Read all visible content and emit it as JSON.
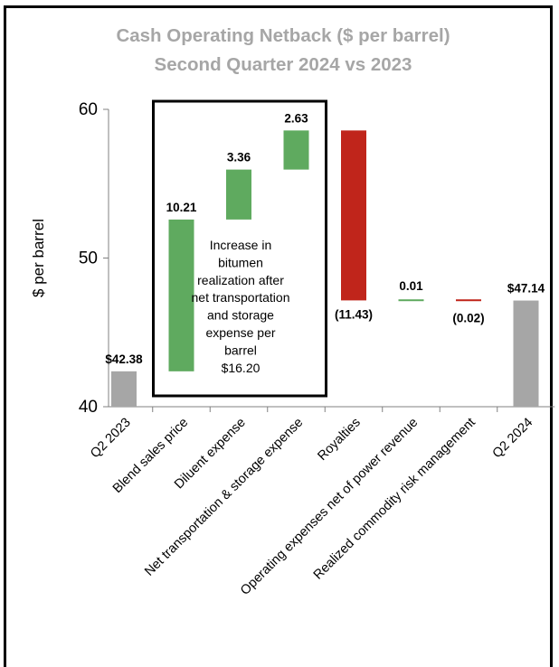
{
  "chart_data": {
    "type": "waterfall",
    "title": "Cash Operating Netback ($ per barrel)",
    "subtitle": "Second Quarter 2024 vs 2023",
    "ylabel": "$ per barrel",
    "ylim": [
      40,
      60
    ],
    "yticks": [
      40,
      50,
      60
    ],
    "grid": false,
    "legend": "none",
    "categories": [
      "Q2 2023",
      "Blend sales price",
      "Diluent expense",
      "Net transportation & storage expense",
      "Royalties",
      "Operating expenses net of power revenue",
      "Realized commodity risk management",
      "Q2 2024"
    ],
    "steps": [
      {
        "kind": "total",
        "value": 42.38,
        "label": "$42.38"
      },
      {
        "kind": "delta",
        "value": 10.21,
        "label": "10.21"
      },
      {
        "kind": "delta",
        "value": 3.36,
        "label": "3.36"
      },
      {
        "kind": "delta",
        "value": 2.63,
        "label": "2.63"
      },
      {
        "kind": "delta",
        "value": -11.43,
        "label": "(11.43)"
      },
      {
        "kind": "delta",
        "value": 0.01,
        "label": "0.01"
      },
      {
        "kind": "delta",
        "value": -0.02,
        "label": "(0.02)"
      },
      {
        "kind": "total",
        "value": 47.14,
        "label": "$47.14"
      }
    ],
    "annotation": {
      "lines": [
        "Increase in",
        "bitumen",
        "realization after",
        "net transportation",
        "and storage",
        "expense per",
        "barrel",
        "$16.20"
      ],
      "spans_categories": [
        "Blend sales price",
        "Diluent expense",
        "Net transportation & storage expense"
      ]
    },
    "colors": {
      "total": "#a6a6a6",
      "increase": "#5faa5f",
      "decrease": "#c0251b",
      "title": "#a6a6a6"
    }
  }
}
